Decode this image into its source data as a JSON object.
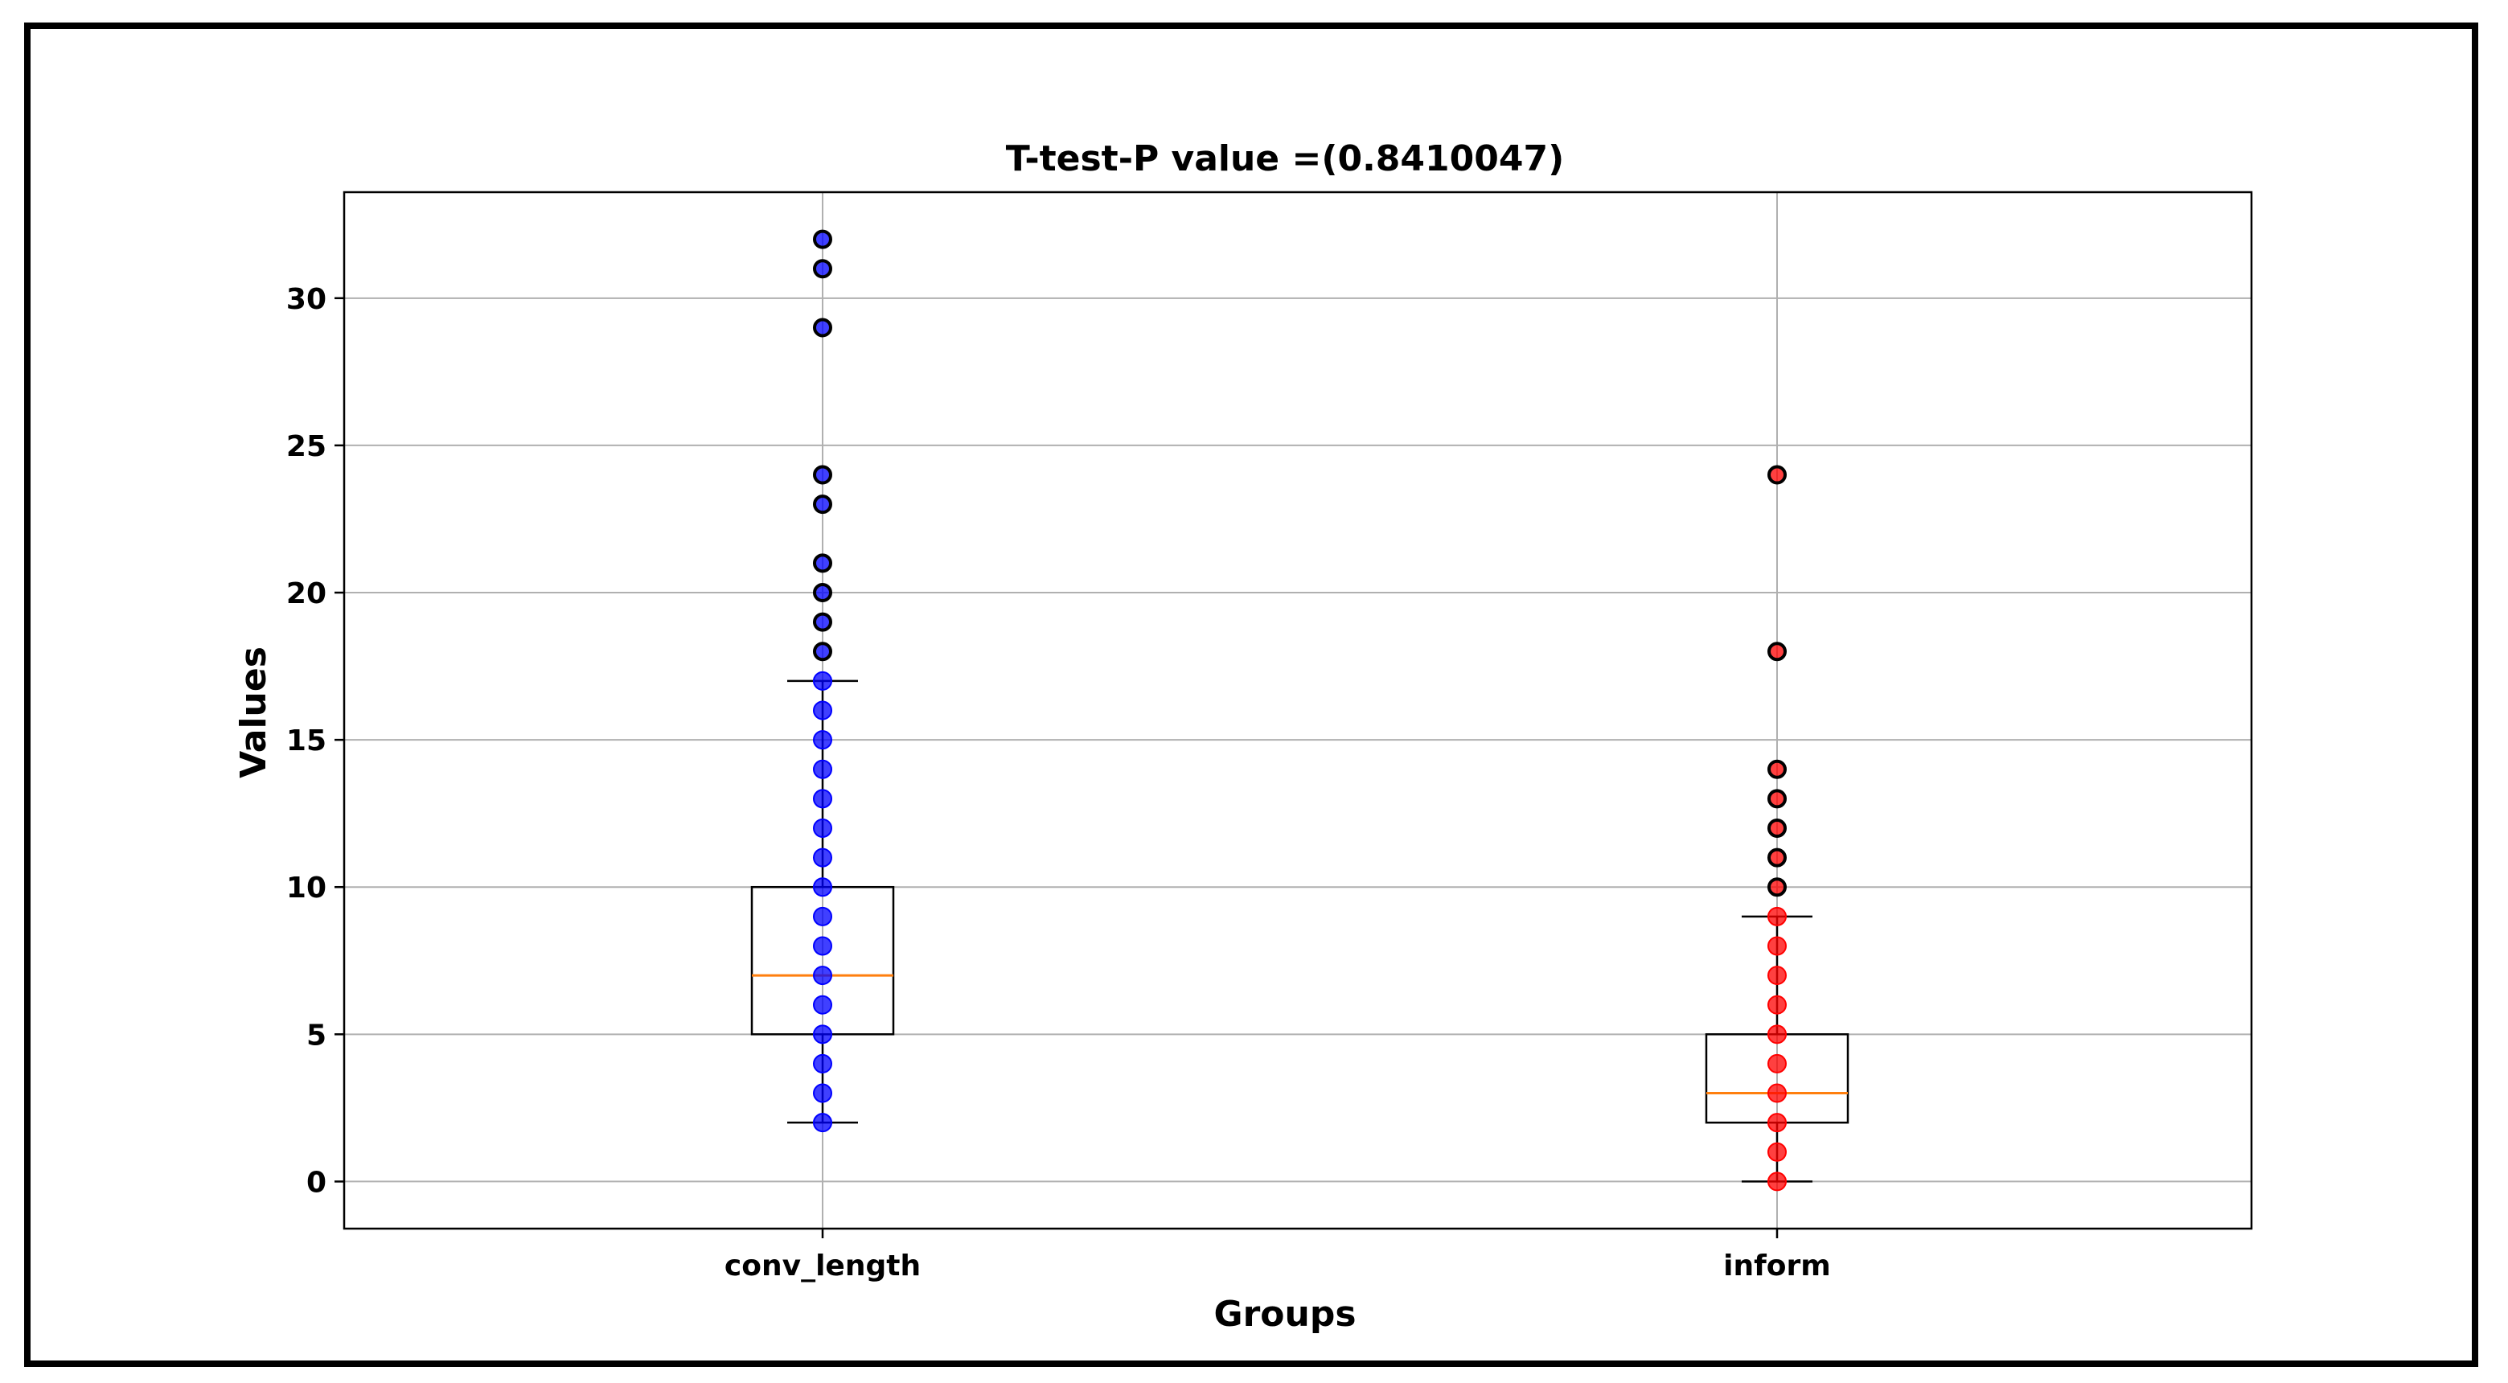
{
  "chart_data": {
    "type": "box",
    "title": "T-test-P value =(0.8410047)",
    "xlabel": "Groups",
    "ylabel": "Values",
    "ylim": [
      -1.6,
      33.6
    ],
    "yticks": [
      0,
      5,
      10,
      15,
      20,
      25,
      30
    ],
    "grid": true,
    "categories": [
      "conv_length",
      "inform"
    ],
    "series": [
      {
        "color": "#0000ff",
        "box": {
          "whisker_low": 2,
          "q1": 5,
          "median": 7,
          "q3": 10,
          "whisker_high": 17
        },
        "points": [
          2,
          3,
          4,
          5,
          6,
          7,
          8,
          9,
          10,
          11,
          12,
          13,
          14,
          15,
          16,
          17
        ],
        "outliers": [
          18,
          19,
          20,
          21,
          23,
          24,
          29,
          31,
          32
        ]
      },
      {
        "color": "#ff0000",
        "box": {
          "whisker_low": 0,
          "q1": 2,
          "median": 3,
          "q3": 5,
          "whisker_high": 9
        },
        "points": [
          0,
          1,
          2,
          3,
          4,
          5,
          6,
          7,
          8,
          9
        ],
        "outliers": [
          10,
          11,
          12,
          13,
          14,
          18,
          24
        ]
      }
    ],
    "median_color": "#ff7f0e"
  }
}
